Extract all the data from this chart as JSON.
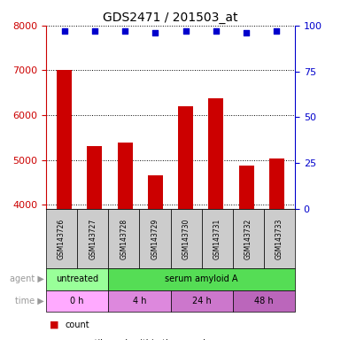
{
  "title": "GDS2471 / 201503_at",
  "samples": [
    "GSM143726",
    "GSM143727",
    "GSM143728",
    "GSM143729",
    "GSM143730",
    "GSM143731",
    "GSM143732",
    "GSM143733"
  ],
  "counts": [
    7000,
    5300,
    5380,
    4650,
    6200,
    6380,
    4870,
    5030
  ],
  "percentile_ranks": [
    97,
    97,
    97,
    96,
    97,
    97,
    96,
    97
  ],
  "ylim_left": [
    3900,
    8000
  ],
  "ylim_right": [
    0,
    100
  ],
  "yticks_left": [
    4000,
    5000,
    6000,
    7000,
    8000
  ],
  "yticks_right": [
    0,
    25,
    50,
    75,
    100
  ],
  "bar_color": "#cc0000",
  "dot_color": "#0000cc",
  "bar_width": 0.5,
  "agent_labels": [
    {
      "label": "untreated",
      "start": 0,
      "end": 2,
      "color": "#99ff99"
    },
    {
      "label": "serum amyloid A",
      "start": 2,
      "end": 8,
      "color": "#55dd55"
    }
  ],
  "time_labels": [
    {
      "label": "0 h",
      "start": 0,
      "end": 2,
      "color": "#ffaaff"
    },
    {
      "label": "4 h",
      "start": 2,
      "end": 4,
      "color": "#dd88dd"
    },
    {
      "label": "24 h",
      "start": 4,
      "end": 6,
      "color": "#cc77cc"
    },
    {
      "label": "48 h",
      "start": 6,
      "end": 8,
      "color": "#bb66bb"
    }
  ],
  "legend_count_color": "#cc0000",
  "legend_dot_color": "#0000cc",
  "sample_box_color": "#cccccc",
  "left_color": "#cc0000",
  "right_color": "#0000cc"
}
